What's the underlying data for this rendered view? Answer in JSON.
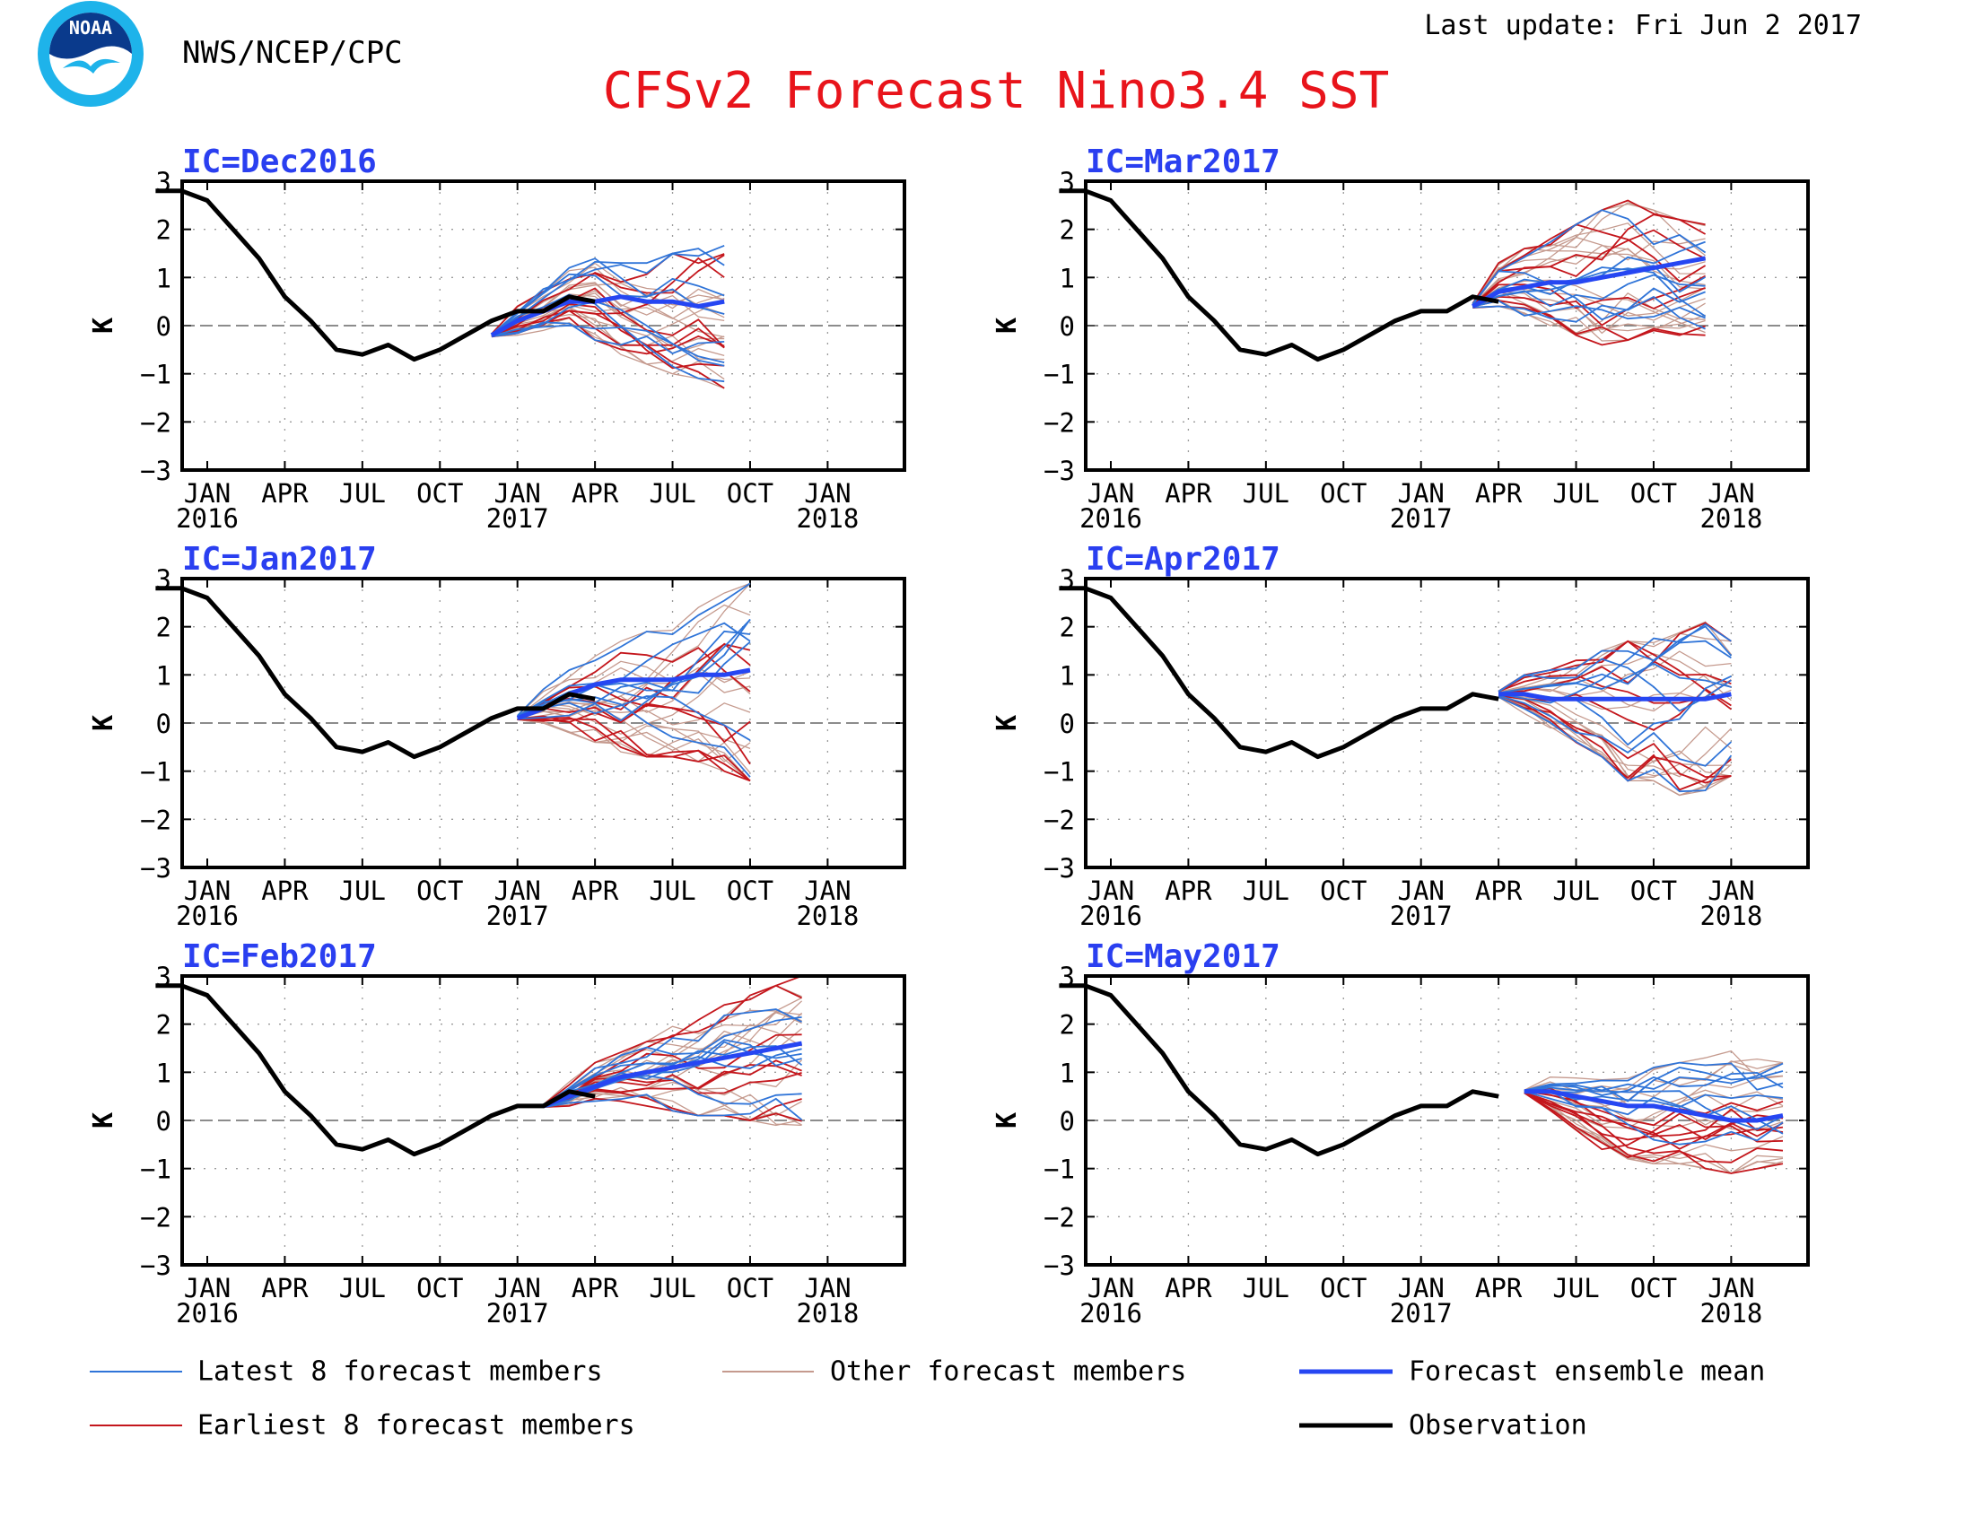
{
  "header": {
    "org_logo_text": "NOAA",
    "agency": "NWS/NCEP/CPC",
    "title": "CFSv2 Forecast Nino3.4 SST",
    "last_update": "Last update: Fri Jun 2 2017"
  },
  "colors": {
    "title": "#e8141b",
    "panel_title": "#2a3ff0",
    "latest": "#2f74d8",
    "earliest": "#c4161c",
    "other": "#c59a8e",
    "mean": "#2646f2",
    "observation": "#000000",
    "zero_line": "#666666",
    "grid": "#9a9a9a"
  },
  "legend": {
    "latest": "Latest 8 forecast members",
    "other": "Other forecast members",
    "mean": "Forecast ensemble mean",
    "earliest": "Earliest 8 forecast members",
    "observation": "Observation"
  },
  "chart_data": [
    {
      "type": "line",
      "title": "IC=Dec2016",
      "ylabel": "K",
      "ylim": [
        -3,
        3
      ],
      "yticks": [
        "3",
        "2",
        "1",
        "0",
        "−1",
        "−2",
        "−3"
      ],
      "xlim_months": [
        0,
        26
      ],
      "xticks": [
        "JAN",
        "APR",
        "JUL",
        "OCT",
        "JAN",
        "APR",
        "JUL",
        "OCT",
        "JAN"
      ],
      "year_labels": [
        "2016",
        "2017",
        "2018"
      ],
      "grid": "dotted",
      "observation": {
        "start": "2015-11",
        "values": [
          2.8,
          2.8,
          2.6,
          2.0,
          1.4,
          0.6,
          0.1,
          -0.5,
          -0.6,
          -0.4,
          -0.7,
          -0.5,
          -0.2,
          0.1,
          0.3,
          0.3,
          0.6,
          0.5
        ]
      },
      "ensemble_mean": {
        "start": "2016-12",
        "values": [
          -0.2,
          0.1,
          0.3,
          0.5,
          0.5,
          0.6,
          0.5,
          0.5,
          0.4,
          0.5
        ]
      },
      "spread": {
        "start": "2016-12",
        "upper": [
          -0.1,
          0.4,
          0.8,
          1.2,
          1.5,
          1.3,
          1.3,
          1.5,
          1.6,
          1.7
        ],
        "lower": [
          -0.3,
          -0.2,
          -0.1,
          0.0,
          -0.3,
          -0.6,
          -0.8,
          -1.0,
          -1.1,
          -1.3
        ]
      }
    },
    {
      "type": "line",
      "title": "IC=Jan2017",
      "ylabel": "K",
      "ylim": [
        -3,
        3
      ],
      "yticks": [
        "3",
        "2",
        "1",
        "0",
        "−1",
        "−2",
        "−3"
      ],
      "xlim_months": [
        0,
        26
      ],
      "xticks": [
        "JAN",
        "APR",
        "JUL",
        "OCT",
        "JAN",
        "APR",
        "JUL",
        "OCT",
        "JAN"
      ],
      "year_labels": [
        "2016",
        "2017",
        "2018"
      ],
      "grid": "dotted",
      "observation": {
        "start": "2015-11",
        "values": [
          2.8,
          2.8,
          2.6,
          2.0,
          1.4,
          0.6,
          0.1,
          -0.5,
          -0.6,
          -0.4,
          -0.7,
          -0.5,
          -0.2,
          0.1,
          0.3,
          0.3,
          0.6,
          0.5
        ]
      },
      "ensemble_mean": {
        "start": "2017-01",
        "values": [
          0.1,
          0.3,
          0.6,
          0.8,
          0.9,
          0.9,
          0.9,
          1.0,
          1.0,
          1.1
        ]
      },
      "spread": {
        "start": "2017-01",
        "upper": [
          0.3,
          0.7,
          1.1,
          1.4,
          1.7,
          1.9,
          2.1,
          2.4,
          2.7,
          2.9
        ],
        "lower": [
          0.0,
          0.0,
          -0.2,
          -0.4,
          -0.6,
          -0.7,
          -0.7,
          -0.8,
          -1.0,
          -1.2
        ]
      }
    },
    {
      "type": "line",
      "title": "IC=Feb2017",
      "ylabel": "K",
      "ylim": [
        -3,
        3
      ],
      "yticks": [
        "3",
        "2",
        "1",
        "0",
        "−1",
        "−2",
        "−3"
      ],
      "xlim_months": [
        0,
        26
      ],
      "xticks": [
        "JAN",
        "APR",
        "JUL",
        "OCT",
        "JAN",
        "APR",
        "JUL",
        "OCT",
        "JAN"
      ],
      "year_labels": [
        "2016",
        "2017",
        "2018"
      ],
      "grid": "dotted",
      "observation": {
        "start": "2015-11",
        "values": [
          2.8,
          2.8,
          2.6,
          2.0,
          1.4,
          0.6,
          0.1,
          -0.5,
          -0.6,
          -0.4,
          -0.7,
          -0.5,
          -0.2,
          0.1,
          0.3,
          0.3,
          0.6,
          0.5
        ]
      },
      "ensemble_mean": {
        "start": "2017-02",
        "values": [
          0.3,
          0.5,
          0.7,
          0.9,
          1.0,
          1.1,
          1.2,
          1.3,
          1.4,
          1.5,
          1.6
        ]
      },
      "spread": {
        "start": "2017-02",
        "upper": [
          0.4,
          0.8,
          1.2,
          1.5,
          1.8,
          2.0,
          2.2,
          2.4,
          2.6,
          2.8,
          3.0
        ],
        "lower": [
          0.2,
          0.3,
          0.4,
          0.4,
          0.3,
          0.2,
          0.1,
          0.1,
          0.0,
          -0.1,
          -0.1
        ]
      }
    },
    {
      "type": "line",
      "title": "IC=Mar2017",
      "ylabel": "K",
      "ylim": [
        -3,
        3
      ],
      "yticks": [
        "3",
        "2",
        "1",
        "0",
        "−1",
        "−2",
        "−3"
      ],
      "xlim_months": [
        0,
        26
      ],
      "xticks": [
        "JAN",
        "APR",
        "JUL",
        "OCT",
        "JAN",
        "APR",
        "JUL",
        "OCT",
        "JAN"
      ],
      "year_labels": [
        "2016",
        "2017",
        "2018"
      ],
      "grid": "dotted",
      "observation": {
        "start": "2015-11",
        "values": [
          2.8,
          2.8,
          2.6,
          2.0,
          1.4,
          0.6,
          0.1,
          -0.5,
          -0.6,
          -0.4,
          -0.7,
          -0.5,
          -0.2,
          0.1,
          0.3,
          0.3,
          0.6,
          0.5
        ]
      },
      "ensemble_mean": {
        "start": "2017-03",
        "values": [
          0.4,
          0.7,
          0.8,
          0.9,
          0.9,
          1.0,
          1.1,
          1.2,
          1.3,
          1.4
        ]
      },
      "spread": {
        "start": "2017-03",
        "upper": [
          0.6,
          1.3,
          1.6,
          1.8,
          2.1,
          2.4,
          2.6,
          2.4,
          2.2,
          2.1
        ],
        "lower": [
          0.3,
          0.4,
          0.2,
          0.0,
          -0.2,
          -0.4,
          -0.3,
          -0.1,
          -0.2,
          -0.2
        ]
      }
    },
    {
      "type": "line",
      "title": "IC=Apr2017",
      "ylabel": "K",
      "ylim": [
        -3,
        3
      ],
      "yticks": [
        "3",
        "2",
        "1",
        "0",
        "−1",
        "−2",
        "−3"
      ],
      "xlim_months": [
        0,
        26
      ],
      "xticks": [
        "JAN",
        "APR",
        "JUL",
        "OCT",
        "JAN",
        "APR",
        "JUL",
        "OCT",
        "JAN"
      ],
      "year_labels": [
        "2016",
        "2017",
        "2018"
      ],
      "grid": "dotted",
      "observation": {
        "start": "2015-11",
        "values": [
          2.8,
          2.8,
          2.6,
          2.0,
          1.4,
          0.6,
          0.1,
          -0.5,
          -0.6,
          -0.4,
          -0.7,
          -0.5,
          -0.2,
          0.1,
          0.3,
          0.3,
          0.6,
          0.5
        ]
      },
      "ensemble_mean": {
        "start": "2017-04",
        "values": [
          0.6,
          0.6,
          0.5,
          0.5,
          0.5,
          0.5,
          0.5,
          0.5,
          0.5,
          0.6
        ]
      },
      "spread": {
        "start": "2017-04",
        "upper": [
          0.8,
          1.0,
          1.1,
          1.3,
          1.5,
          1.7,
          1.8,
          1.9,
          2.1,
          1.7
        ],
        "lower": [
          0.4,
          0.2,
          -0.1,
          -0.4,
          -0.7,
          -1.2,
          -1.2,
          -1.5,
          -1.4,
          -1.1
        ]
      }
    },
    {
      "type": "line",
      "title": "IC=May2017",
      "ylabel": "K",
      "ylim": [
        -3,
        3
      ],
      "yticks": [
        "3",
        "2",
        "1",
        "0",
        "−1",
        "−2",
        "−3"
      ],
      "xlim_months": [
        0,
        26
      ],
      "xticks": [
        "JAN",
        "APR",
        "JUL",
        "OCT",
        "JAN",
        "APR",
        "JUL",
        "OCT",
        "JAN"
      ],
      "year_labels": [
        "2016",
        "2017",
        "2018"
      ],
      "grid": "dotted",
      "observation": {
        "start": "2015-11",
        "values": [
          2.8,
          2.8,
          2.6,
          2.0,
          1.4,
          0.6,
          0.1,
          -0.5,
          -0.6,
          -0.4,
          -0.7,
          -0.5,
          -0.2,
          0.1,
          0.3,
          0.3,
          0.6,
          0.5
        ]
      },
      "ensemble_mean": {
        "start": "2017-05",
        "values": [
          0.6,
          0.6,
          0.5,
          0.4,
          0.3,
          0.3,
          0.2,
          0.1,
          0.0,
          0.0,
          0.1
        ]
      },
      "spread": {
        "start": "2017-05",
        "upper": [
          0.7,
          0.9,
          0.9,
          1.0,
          0.9,
          1.1,
          1.2,
          1.3,
          1.5,
          1.3,
          1.2
        ],
        "lower": [
          0.5,
          0.2,
          -0.2,
          -0.6,
          -0.8,
          -0.9,
          -0.9,
          -1.0,
          -1.1,
          -1.0,
          -0.9
        ]
      }
    }
  ]
}
